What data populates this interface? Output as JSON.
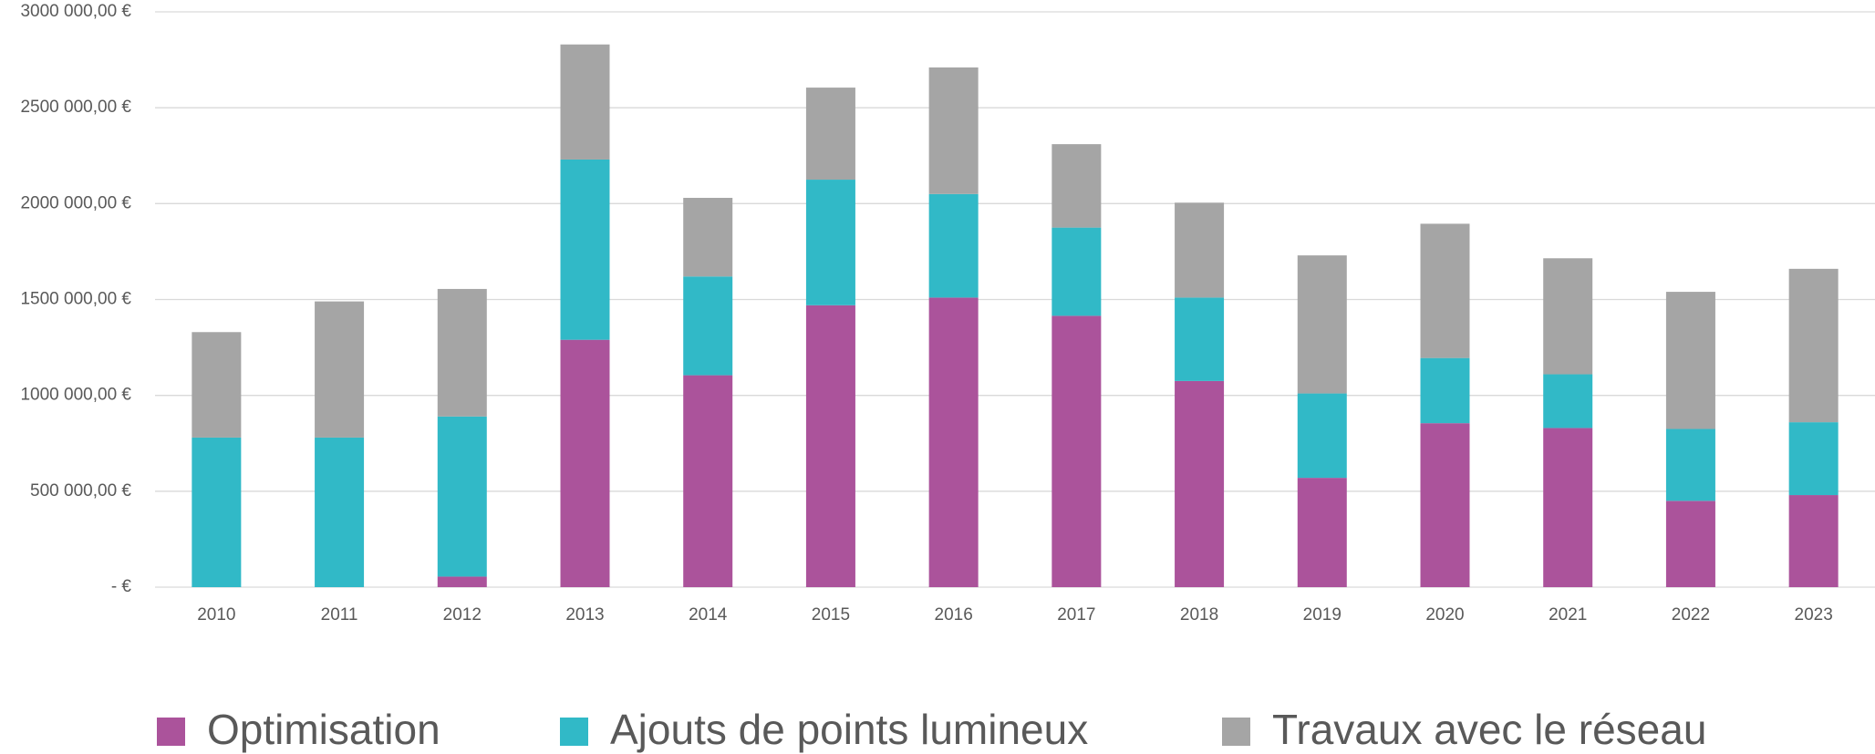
{
  "chart_data": {
    "type": "stacked_bar",
    "categories": [
      "2010",
      "2011",
      "2012",
      "2013",
      "2014",
      "2015",
      "2016",
      "2017",
      "2018",
      "2019",
      "2020",
      "2021",
      "2022",
      "2023"
    ],
    "series": [
      {
        "name": "Optimisation",
        "color": "#ab539b",
        "values": [
          0,
          0,
          55000,
          1290000,
          1105000,
          1470000,
          1510000,
          1415000,
          1075000,
          570000,
          855000,
          830000,
          450000,
          480000
        ]
      },
      {
        "name": "Ajouts de points lumineux",
        "color": "#31b9c7",
        "values": [
          780000,
          780000,
          835000,
          940000,
          515000,
          655000,
          540000,
          460000,
          435000,
          440000,
          340000,
          280000,
          375000,
          380000
        ]
      },
      {
        "name": "Travaux avec le réseau",
        "color": "#a5a5a5",
        "values": [
          550000,
          710000,
          665000,
          600000,
          410000,
          480000,
          660000,
          435000,
          495000,
          720000,
          700000,
          605000,
          715000,
          800000
        ]
      }
    ],
    "ylim": [
      0,
      3000000
    ],
    "yticks": [
      {
        "value": 0,
        "label": "-  €"
      },
      {
        "value": 500000,
        "label": "500 000,00 €"
      },
      {
        "value": 1000000,
        "label": "1000 000,00 €"
      },
      {
        "value": 1500000,
        "label": "1500 000,00 €"
      },
      {
        "value": 2000000,
        "label": "2000 000,00 €"
      },
      {
        "value": 2500000,
        "label": "2500 000,00 €"
      },
      {
        "value": 3000000,
        "label": "3000 000,00 €"
      }
    ],
    "grid": true,
    "legend": "bottom"
  }
}
